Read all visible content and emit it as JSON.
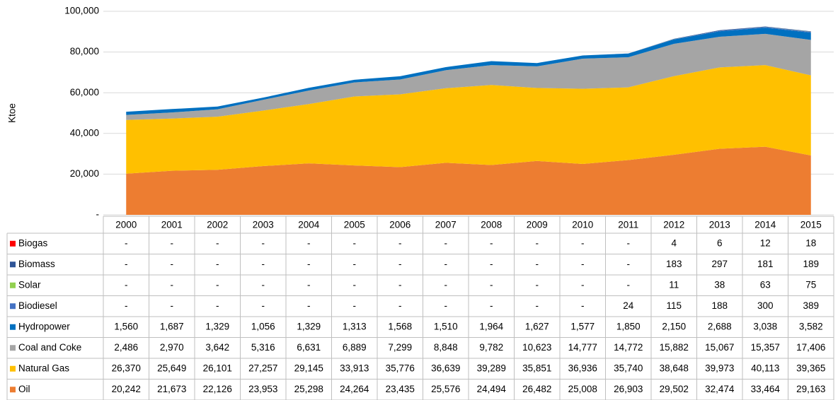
{
  "chart_data": {
    "type": "area",
    "stacked": true,
    "y_label": "Ktoe",
    "ylim": [
      0,
      100000
    ],
    "yticks": [
      {
        "value": 0,
        "label": "-"
      },
      {
        "value": 20000,
        "label": "20,000"
      },
      {
        "value": 40000,
        "label": "40,000"
      },
      {
        "value": 60000,
        "label": "60,000"
      },
      {
        "value": 80000,
        "label": "80,000"
      },
      {
        "value": 100000,
        "label": "100,000"
      }
    ],
    "grid": true,
    "categories": [
      "2000",
      "2001",
      "2002",
      "2003",
      "2004",
      "2005",
      "2006",
      "2007",
      "2008",
      "2009",
      "2010",
      "2011",
      "2012",
      "2013",
      "2014",
      "2015"
    ],
    "series": [
      {
        "name": "Biogas",
        "color": "#ff0000",
        "values": [
          0,
          0,
          0,
          0,
          0,
          0,
          0,
          0,
          0,
          0,
          0,
          0,
          4,
          6,
          12,
          18
        ],
        "value_labels": [
          "-",
          "-",
          "-",
          "-",
          "-",
          "-",
          "-",
          "-",
          "-",
          "-",
          "-",
          "-",
          "4",
          "6",
          "12",
          "18"
        ]
      },
      {
        "name": "Biomass",
        "color": "#2f5597",
        "values": [
          0,
          0,
          0,
          0,
          0,
          0,
          0,
          0,
          0,
          0,
          0,
          0,
          183,
          297,
          181,
          189
        ],
        "value_labels": [
          "-",
          "-",
          "-",
          "-",
          "-",
          "-",
          "-",
          "-",
          "-",
          "-",
          "-",
          "-",
          "183",
          "297",
          "181",
          "189"
        ]
      },
      {
        "name": "Solar",
        "color": "#92d050",
        "values": [
          0,
          0,
          0,
          0,
          0,
          0,
          0,
          0,
          0,
          0,
          0,
          0,
          11,
          38,
          63,
          75
        ],
        "value_labels": [
          "-",
          "-",
          "-",
          "-",
          "-",
          "-",
          "-",
          "-",
          "-",
          "-",
          "-",
          "-",
          "11",
          "38",
          "63",
          "75"
        ]
      },
      {
        "name": "Biodiesel",
        "color": "#4472c4",
        "values": [
          0,
          0,
          0,
          0,
          0,
          0,
          0,
          0,
          0,
          0,
          0,
          24,
          115,
          188,
          300,
          389
        ],
        "value_labels": [
          "-",
          "-",
          "-",
          "-",
          "-",
          "-",
          "-",
          "-",
          "-",
          "-",
          "-",
          "24",
          "115",
          "188",
          "300",
          "389"
        ]
      },
      {
        "name": "Hydropower",
        "color": "#0070c0",
        "values": [
          1560,
          1687,
          1329,
          1056,
          1329,
          1313,
          1568,
          1510,
          1964,
          1627,
          1577,
          1850,
          2150,
          2688,
          3038,
          3582
        ],
        "value_labels": [
          "1,560",
          "1,687",
          "1,329",
          "1,056",
          "1,329",
          "1,313",
          "1,568",
          "1,510",
          "1,964",
          "1,627",
          "1,577",
          "1,850",
          "2,150",
          "2,688",
          "3,038",
          "3,582"
        ]
      },
      {
        "name": "Coal and Coke",
        "color": "#a5a5a5",
        "values": [
          2486,
          2970,
          3642,
          5316,
          6631,
          6889,
          7299,
          8848,
          9782,
          10623,
          14777,
          14772,
          15882,
          15067,
          15357,
          17406
        ],
        "value_labels": [
          "2,486",
          "2,970",
          "3,642",
          "5,316",
          "6,631",
          "6,889",
          "7,299",
          "8,848",
          "9,782",
          "10,623",
          "14,777",
          "14,772",
          "15,882",
          "15,067",
          "15,357",
          "17,406"
        ]
      },
      {
        "name": "Natural Gas",
        "color": "#ffc000",
        "values": [
          26370,
          25649,
          26101,
          27257,
          29145,
          33913,
          35776,
          36639,
          39289,
          35851,
          36936,
          35740,
          38648,
          39973,
          40113,
          39365
        ],
        "value_labels": [
          "26,370",
          "25,649",
          "26,101",
          "27,257",
          "29,145",
          "33,913",
          "35,776",
          "36,639",
          "39,289",
          "35,851",
          "36,936",
          "35,740",
          "38,648",
          "39,973",
          "40,113",
          "39,365"
        ]
      },
      {
        "name": "Oil",
        "color": "#ed7d31",
        "values": [
          20242,
          21673,
          22126,
          23953,
          25298,
          24264,
          23435,
          25576,
          24494,
          26482,
          25008,
          26903,
          29502,
          32474,
          33464,
          29163
        ],
        "value_labels": [
          "20,242",
          "21,673",
          "22,126",
          "23,953",
          "25,298",
          "24,264",
          "23,435",
          "25,576",
          "24,494",
          "26,482",
          "25,008",
          "26,903",
          "29,502",
          "32,474",
          "33,464",
          "29,163"
        ]
      }
    ]
  }
}
